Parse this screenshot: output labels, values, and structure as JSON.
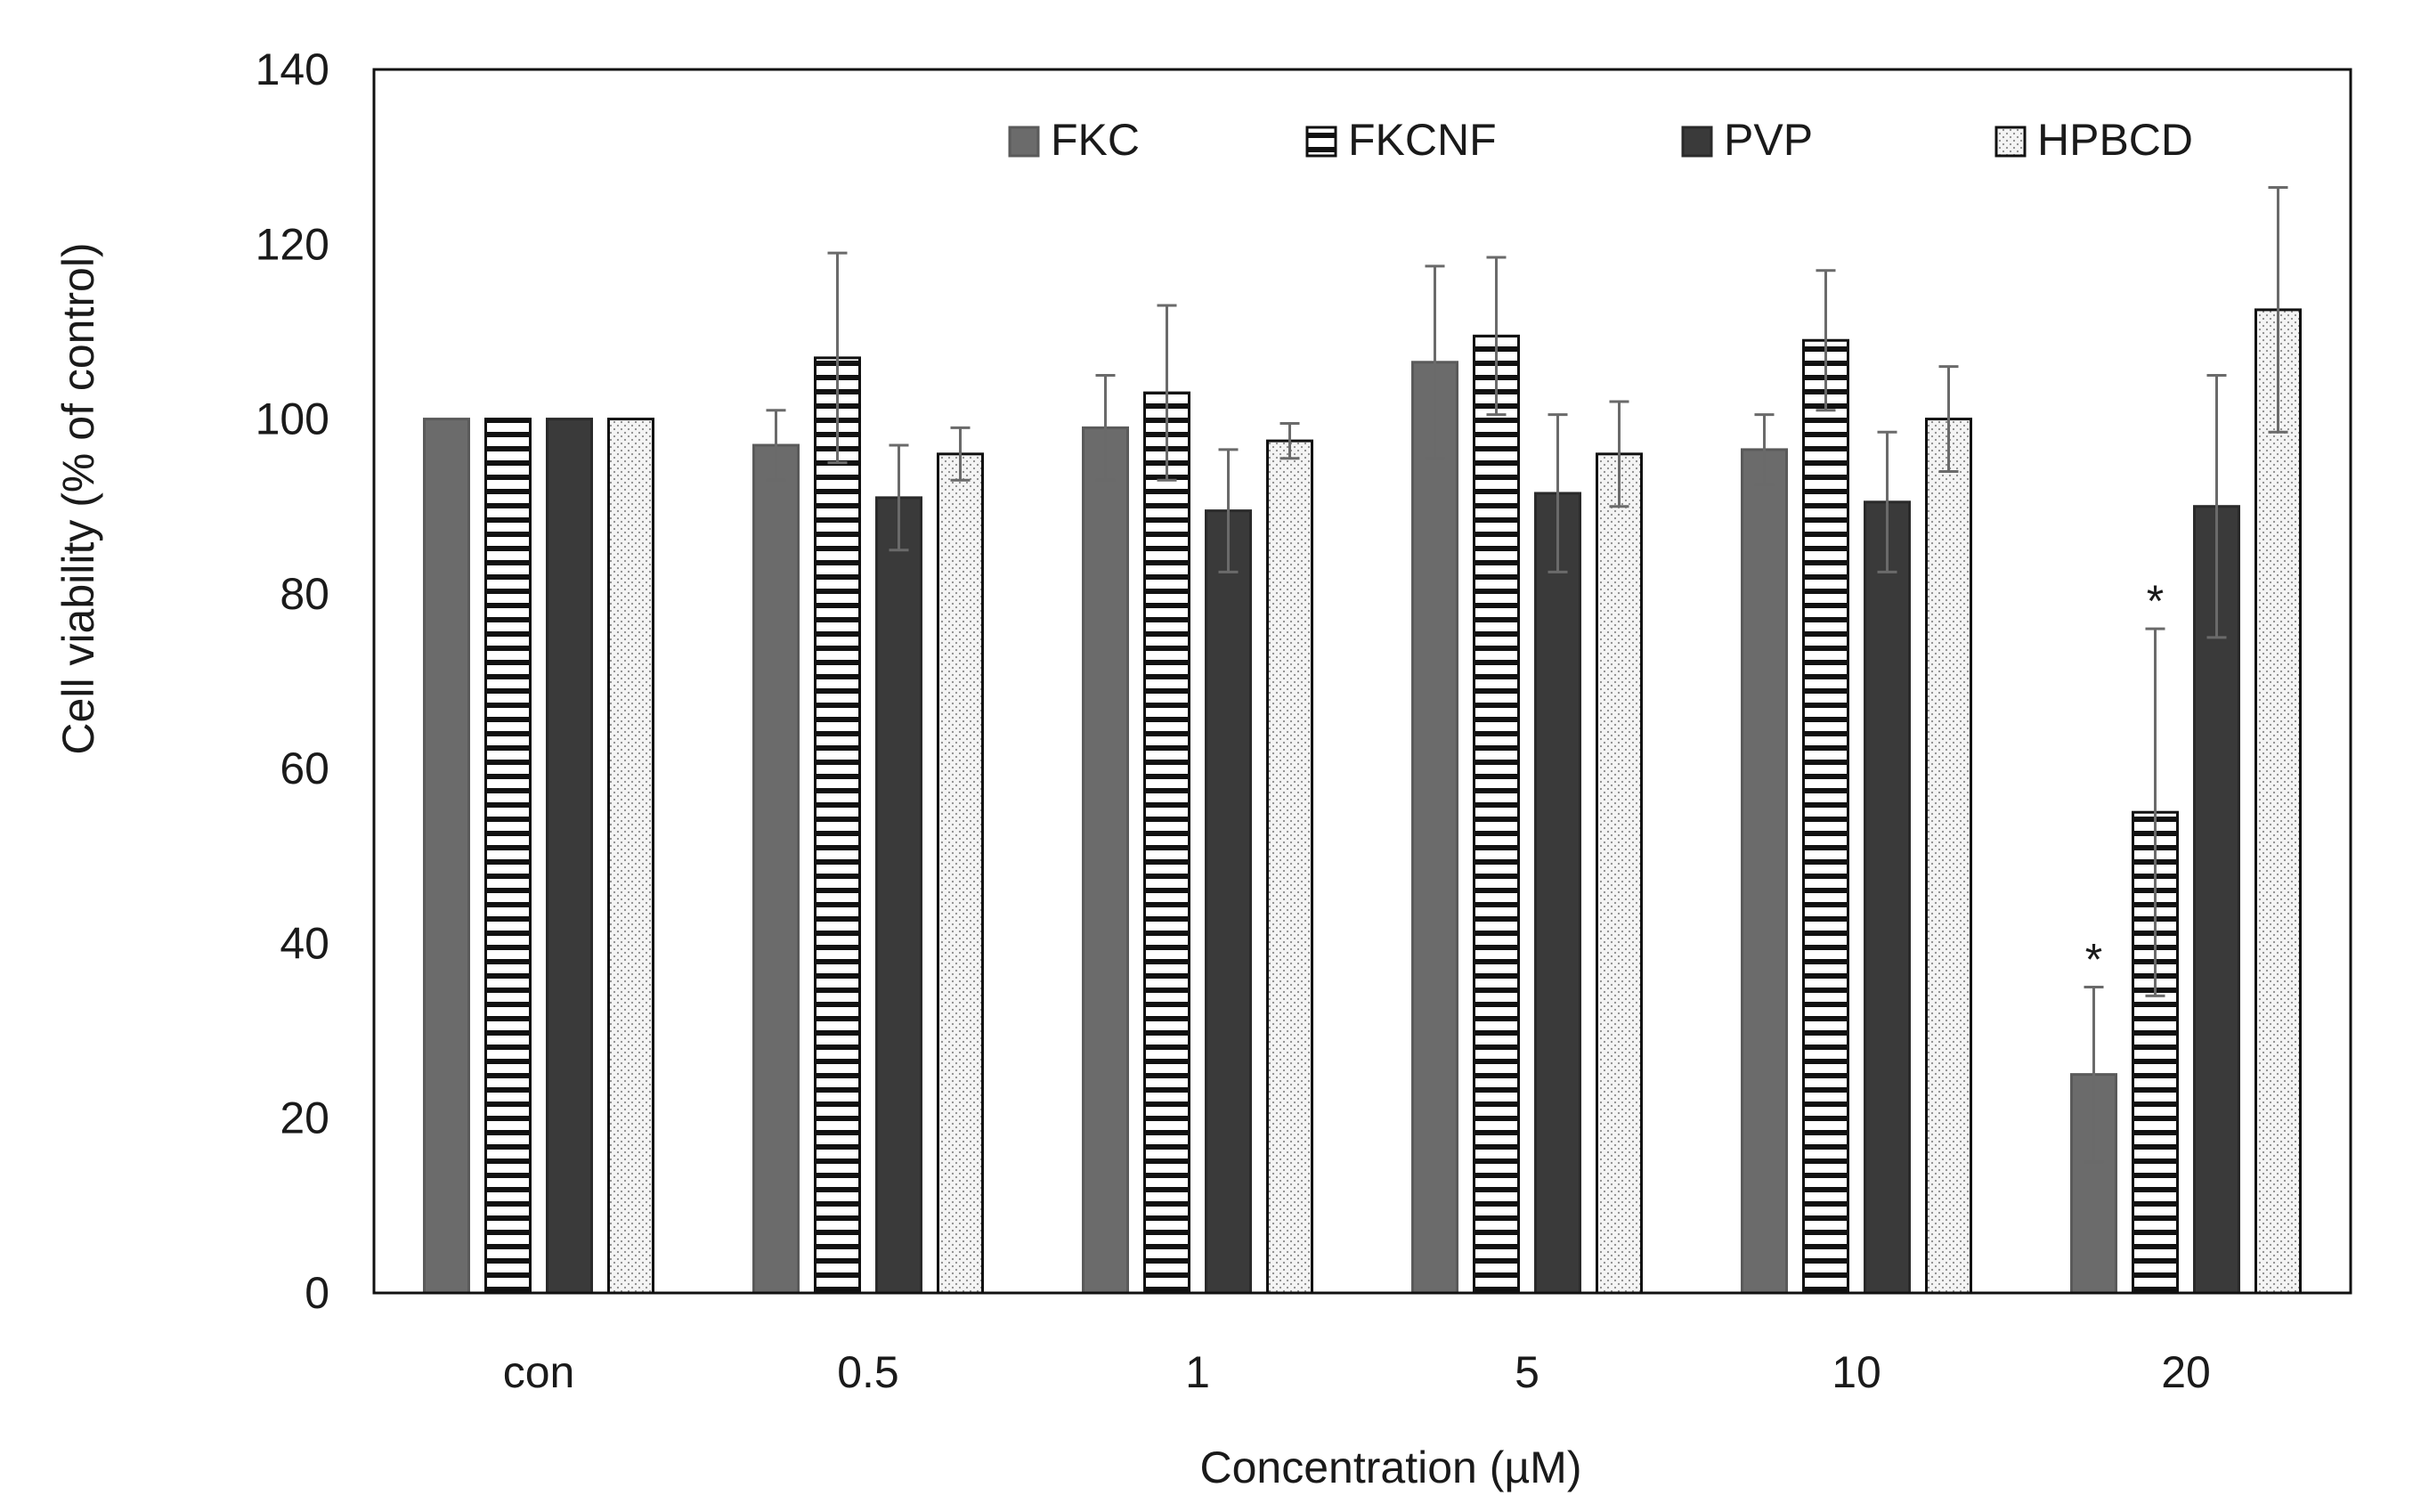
{
  "chart_data": {
    "type": "bar",
    "title": "",
    "xlabel": "Concentration (µM)",
    "ylabel": "Cell viability (% of control)",
    "ylim": [
      0,
      140
    ],
    "yticks": [
      0,
      20,
      40,
      60,
      80,
      100,
      120,
      140
    ],
    "categories": [
      "con",
      "0.5",
      "1",
      "5",
      "10",
      "20"
    ],
    "legend_position": "top-right",
    "series": [
      {
        "name": "FKC",
        "pattern": "solid-gray",
        "color": "#6b6b6b",
        "values": [
          100,
          97,
          99,
          106.5,
          96.5,
          25
        ],
        "errors": [
          0,
          4,
          6,
          11,
          4,
          10
        ],
        "significant": [
          false,
          false,
          false,
          false,
          false,
          true
        ]
      },
      {
        "name": "FKCNF",
        "pattern": "horizontal-stripes",
        "color": "#ffffff",
        "values": [
          100,
          107,
          103,
          109.5,
          109,
          55
        ],
        "errors": [
          0,
          12,
          10,
          9,
          8,
          21
        ],
        "significant": [
          false,
          false,
          false,
          false,
          false,
          true
        ]
      },
      {
        "name": "PVP",
        "pattern": "solid-dark",
        "color": "#3a3a3a",
        "values": [
          100,
          91,
          89.5,
          91.5,
          90.5,
          90
        ],
        "errors": [
          0,
          6,
          7,
          9,
          8,
          15
        ],
        "significant": [
          false,
          false,
          false,
          false,
          false,
          false
        ]
      },
      {
        "name": "HPBCD",
        "pattern": "dots",
        "color": "#f2f2f2",
        "values": [
          100,
          96,
          97.5,
          96,
          100,
          112.5
        ],
        "errors": [
          0,
          3,
          2,
          6,
          6,
          14
        ],
        "significant": [
          false,
          false,
          false,
          false,
          false,
          false
        ]
      }
    ],
    "annotations": [
      {
        "category": "20",
        "series": "FKC",
        "text": "*"
      },
      {
        "category": "20",
        "series": "FKCNF",
        "text": "*"
      }
    ]
  }
}
